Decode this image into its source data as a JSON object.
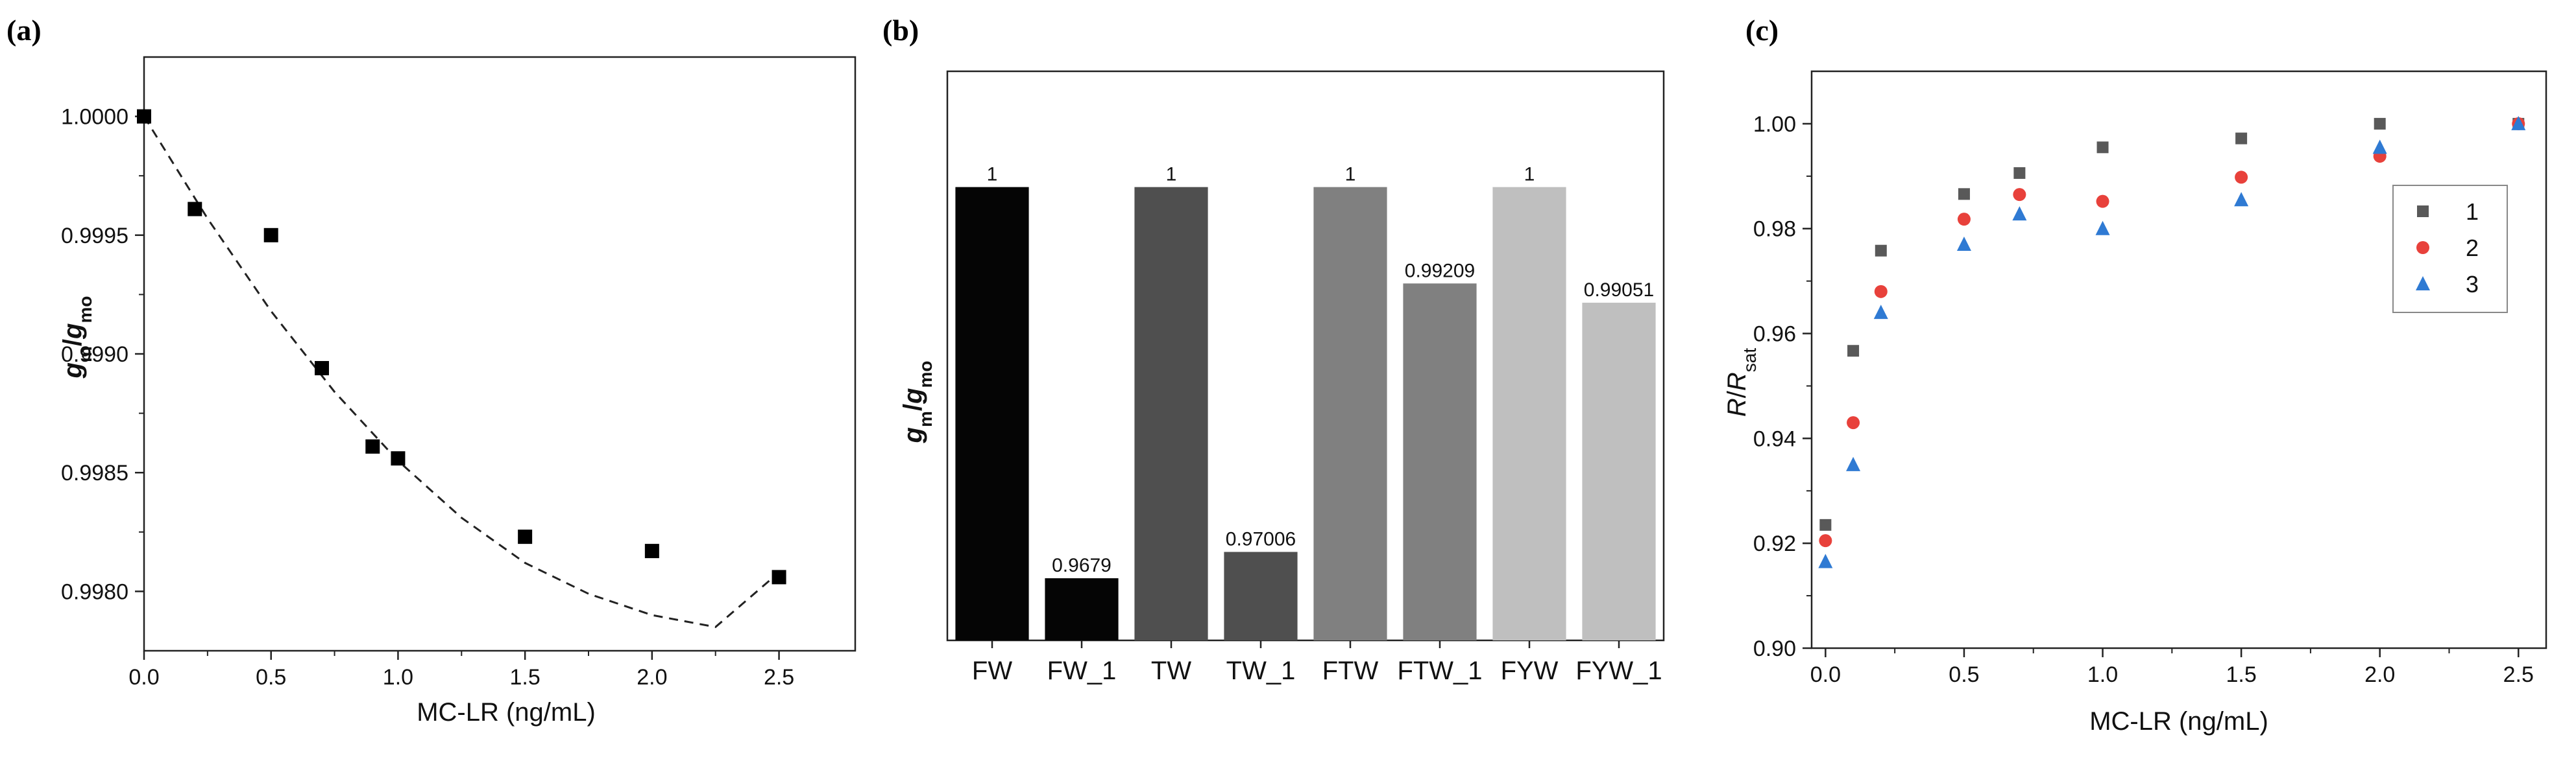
{
  "panels": {
    "a": {
      "label": "(a)"
    },
    "b": {
      "label": "(b)"
    },
    "c": {
      "label": "(c)"
    }
  },
  "colors": {
    "axis": "#222222",
    "marker_a": "#000000",
    "fit_line": "#222222",
    "series_1": "#595959",
    "series_2": "#e8413b",
    "series_3": "#2f7ad3"
  },
  "chart_data": [
    {
      "type": "scatter",
      "panel": "a",
      "xlabel": "MC-LR (ng/mL)",
      "ylabel": {
        "main": "g",
        "sub": "m",
        "sep": "/",
        "main2": "g",
        "sub2": "mo"
      },
      "xlim": [
        0,
        2.8
      ],
      "ylim": [
        0.99775,
        1.00025
      ],
      "xticks": [
        0.0,
        0.5,
        1.0,
        1.5,
        2.0,
        2.5
      ],
      "xtick_labels": [
        "0.0",
        "0.5",
        "1.0",
        "1.5",
        "2.0",
        "2.5"
      ],
      "yticks": [
        0.998,
        0.9985,
        0.999,
        0.9995,
        1.0
      ],
      "ytick_labels": [
        "0.9980",
        "0.9985",
        "0.9990",
        "0.9995",
        "1.0000"
      ],
      "points": {
        "x": [
          0,
          0.2,
          0.5,
          0.7,
          0.9,
          1.0,
          1.5,
          2.0,
          2.5
        ],
        "y": [
          1.0,
          0.99961,
          0.9995,
          0.99894,
          0.99861,
          0.99856,
          0.99823,
          0.99817,
          0.99806
        ]
      },
      "fit": {
        "style": "dashed",
        "x": [
          0,
          0.25,
          0.5,
          0.75,
          1.0,
          1.25,
          1.5,
          1.75,
          2.0,
          2.25,
          2.5
        ],
        "y": [
          1.0,
          0.99957,
          0.99918,
          0.99884,
          0.99855,
          0.99831,
          0.99812,
          0.99799,
          0.9979,
          0.99785,
          0.99808
        ]
      },
      "grid": false
    },
    {
      "type": "bar",
      "panel": "b",
      "ylabel": {
        "main": "g",
        "sub": "m",
        "sep": "/",
        "main2": "g",
        "sub2": "mo"
      },
      "categories": [
        "FW",
        "FW_1",
        "TW",
        "TW_1",
        "FTW",
        "FTW_1",
        "FYW",
        "FYW_1"
      ],
      "values": [
        1,
        0.9679,
        1,
        0.97006,
        1,
        0.99209,
        1,
        0.99051
      ],
      "value_labels": [
        "1",
        "0.9679",
        "1",
        "0.97006",
        "1",
        "0.99209",
        "1",
        "0.99051"
      ],
      "bar_colors": [
        "#050505",
        "#050505",
        "#4f4f4f",
        "#4f4f4f",
        "#808080",
        "#808080",
        "#bfbfbf",
        "#bfbfbf"
      ],
      "ylim": [
        0.9628,
        1.0095
      ],
      "grid": false
    },
    {
      "type": "scatter",
      "panel": "c",
      "xlabel": "MC-LR (ng/mL)",
      "ylabel": {
        "main": "R",
        "sep": "/",
        "main2": "R",
        "sub2": "sat"
      },
      "xlim": [
        -0.05,
        2.6
      ],
      "ylim": [
        0.9,
        1.01
      ],
      "xticks": [
        0.0,
        0.5,
        1.0,
        1.5,
        2.0,
        2.5
      ],
      "xtick_labels": [
        "0.0",
        "0.5",
        "1.0",
        "1.5",
        "2.0",
        "2.5"
      ],
      "yticks": [
        0.9,
        0.92,
        0.94,
        0.96,
        0.98,
        1.0
      ],
      "ytick_labels": [
        "0.90",
        "0.92",
        "0.94",
        "0.96",
        "0.98",
        "1.00"
      ],
      "x": [
        0,
        0.1,
        0.2,
        0.5,
        0.7,
        1.0,
        1.5,
        2.0,
        2.5
      ],
      "series": [
        {
          "name": "1",
          "marker": "square",
          "values": [
            0.9235,
            0.9567,
            0.9758,
            0.9866,
            0.9906,
            0.9955,
            0.9972,
            1.0,
            1.0
          ]
        },
        {
          "name": "2",
          "marker": "circle",
          "values": [
            0.9205,
            0.943,
            0.968,
            0.9818,
            0.9865,
            0.9852,
            0.9898,
            0.9938,
            1.0
          ]
        },
        {
          "name": "3",
          "marker": "triangle",
          "values": [
            0.9165,
            0.935,
            0.964,
            0.977,
            0.9828,
            0.98,
            0.9855,
            0.9955,
            1.0
          ]
        }
      ],
      "legend": {
        "position": "top-right"
      },
      "grid": false
    }
  ]
}
